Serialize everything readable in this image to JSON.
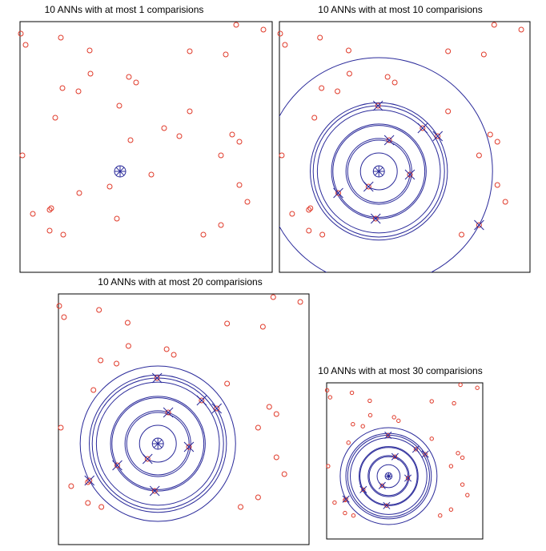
{
  "chart_data": [
    {
      "type": "scatter",
      "title": "10 ANNs with at most 1 comparisions",
      "xlim": [
        0,
        315
      ],
      "ylim": [
        0,
        313
      ],
      "point_color": "#e03a2a",
      "neighbor_color": "#2a2a9a",
      "x": [
        1,
        7,
        51,
        87,
        270,
        304,
        212,
        257,
        88,
        136,
        145,
        53,
        73,
        124,
        212,
        44,
        180,
        199,
        265,
        274,
        138,
        3,
        251,
        164,
        112,
        74,
        274,
        284,
        16,
        39,
        37,
        121,
        251,
        37,
        54,
        229
      ],
      "y": [
        298,
        284,
        293,
        277,
        309,
        303,
        276,
        272,
        248,
        244,
        237,
        230,
        226,
        208,
        201,
        193,
        180,
        170,
        172,
        163,
        165,
        146,
        146,
        122,
        107,
        99,
        109,
        88,
        73,
        80,
        78,
        67,
        59,
        52,
        47,
        47
      ],
      "query": {
        "x": 125,
        "y": 126
      },
      "neighbors": {
        "x": [],
        "y": []
      }
    },
    {
      "type": "scatter",
      "title": "10 ANNs with at most 10 comparisions",
      "xlim": [
        0,
        315
      ],
      "ylim": [
        0,
        313
      ],
      "point_color": "#e03a2a",
      "neighbor_color": "#2a2a9a",
      "x": [
        1,
        7,
        51,
        87,
        270,
        304,
        212,
        257,
        88,
        136,
        145,
        53,
        73,
        124,
        212,
        44,
        180,
        199,
        265,
        274,
        138,
        3,
        251,
        164,
        112,
        74,
        274,
        284,
        16,
        39,
        37,
        121,
        251,
        37,
        54,
        229
      ],
      "y": [
        298,
        284,
        293,
        277,
        309,
        303,
        276,
        272,
        248,
        244,
        237,
        230,
        226,
        208,
        201,
        193,
        180,
        170,
        172,
        163,
        165,
        146,
        146,
        122,
        107,
        99,
        109,
        88,
        73,
        80,
        78,
        67,
        59,
        52,
        47,
        47
      ],
      "query": {
        "x": 125,
        "y": 126
      },
      "neighbors": {
        "x": [
          124,
          180,
          199,
          138,
          164,
          112,
          74,
          121,
          251
        ],
        "y": [
          208,
          180,
          170,
          165,
          122,
          107,
          99,
          67,
          59
        ]
      }
    },
    {
      "type": "scatter",
      "title": "10 ANNs with at most 20 comparisions",
      "xlim": [
        0,
        315
      ],
      "ylim": [
        0,
        313
      ],
      "point_color": "#e03a2a",
      "neighbor_color": "#2a2a9a",
      "x": [
        1,
        7,
        51,
        87,
        270,
        304,
        212,
        257,
        88,
        136,
        145,
        53,
        73,
        124,
        212,
        44,
        180,
        199,
        265,
        274,
        138,
        3,
        251,
        164,
        112,
        74,
        274,
        284,
        16,
        39,
        37,
        121,
        251,
        37,
        54,
        229
      ],
      "y": [
        298,
        284,
        293,
        277,
        309,
        303,
        276,
        272,
        248,
        244,
        237,
        230,
        226,
        208,
        201,
        193,
        180,
        170,
        172,
        163,
        165,
        146,
        146,
        122,
        107,
        99,
        109,
        88,
        73,
        80,
        78,
        67,
        59,
        52,
        47,
        47
      ],
      "query": {
        "x": 125,
        "y": 126
      },
      "neighbors": {
        "x": [
          124,
          180,
          199,
          138,
          164,
          112,
          74,
          121,
          39
        ],
        "y": [
          208,
          180,
          170,
          165,
          122,
          107,
          99,
          67,
          80
        ]
      }
    },
    {
      "type": "scatter",
      "title": "10 ANNs with at most 30 comparisions",
      "xlim": [
        0,
        315
      ],
      "ylim": [
        0,
        313
      ],
      "point_color": "#e03a2a",
      "neighbor_color": "#2a2a9a",
      "x": [
        1,
        7,
        51,
        87,
        270,
        304,
        212,
        257,
        88,
        136,
        145,
        53,
        73,
        124,
        212,
        44,
        180,
        199,
        265,
        274,
        138,
        3,
        251,
        164,
        112,
        74,
        274,
        284,
        16,
        39,
        37,
        121,
        251,
        37,
        54,
        229
      ],
      "y": [
        298,
        284,
        293,
        277,
        309,
        303,
        276,
        272,
        248,
        244,
        237,
        230,
        226,
        208,
        201,
        193,
        180,
        170,
        172,
        163,
        165,
        146,
        146,
        122,
        107,
        99,
        109,
        88,
        73,
        80,
        78,
        67,
        59,
        52,
        47,
        47
      ],
      "query": {
        "x": 125,
        "y": 126
      },
      "neighbors": {
        "x": [
          124,
          180,
          199,
          138,
          164,
          112,
          74,
          121,
          39
        ],
        "y": [
          208,
          180,
          170,
          165,
          122,
          107,
          99,
          67,
          80
        ]
      }
    }
  ]
}
